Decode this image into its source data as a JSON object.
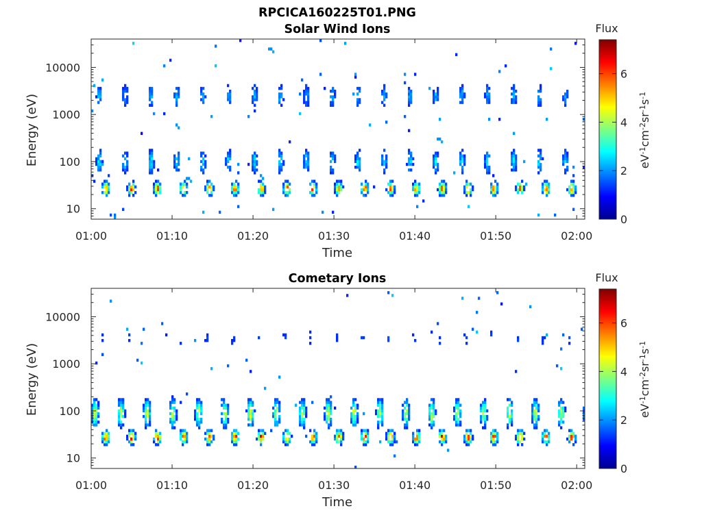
{
  "figure_title": "RPCICA160225T01.PNG",
  "colorbar": {
    "title": "Flux",
    "unit_base": [
      "eV",
      "cm",
      "sr",
      "s"
    ],
    "unit_exp": [
      "-1",
      "-2",
      "-1",
      "-1"
    ],
    "ticks": [
      "0",
      "2",
      "4",
      "6"
    ],
    "max": 7.4
  },
  "colors": {
    "colormap": [
      "#00008f",
      "#0000ff",
      "#0080ff",
      "#00ffff",
      "#80ff80",
      "#ffff00",
      "#ff8000",
      "#ff0000",
      "#800000"
    ]
  },
  "chart_data": [
    {
      "type": "heatmap",
      "title": "Solar Wind Ions",
      "xlabel": "Time",
      "ylabel": "Energy (eV)",
      "x_ticks": [
        "01:00",
        "01:10",
        "01:20",
        "01:30",
        "01:40",
        "01:50",
        "02:00"
      ],
      "xlim_minutes": [
        0,
        61
      ],
      "y_ticks": [
        "10",
        "100",
        "1000",
        "10000"
      ],
      "y_scale": "log",
      "ylim": [
        6,
        40000
      ],
      "colorbar_label": "Flux",
      "features": [
        {
          "energy": 27,
          "flux": 6.3,
          "period_min": 3.2,
          "start_min": 1.8
        },
        {
          "energy": 2500,
          "flux": 2.4,
          "period_min": 3.2,
          "start_min": 1.0
        },
        {
          "energy": 100,
          "flux": 2.8,
          "period_min": 3.2,
          "start_min": 1.0
        }
      ]
    },
    {
      "type": "heatmap",
      "title": "Cometary Ions",
      "xlabel": "Time",
      "ylabel": "Energy (eV)",
      "x_ticks": [
        "01:00",
        "01:10",
        "01:20",
        "01:30",
        "01:40",
        "01:50",
        "02:00"
      ],
      "xlim_minutes": [
        0,
        61
      ],
      "y_ticks": [
        "10",
        "100",
        "1000",
        "10000"
      ],
      "y_scale": "log",
      "ylim": [
        6,
        40000
      ],
      "colorbar_label": "Flux",
      "features": [
        {
          "energy": 28,
          "flux": 6.8,
          "period_min": 3.2,
          "start_min": 1.8
        },
        {
          "energy": 90,
          "flux": 4.6,
          "period_min": 3.2,
          "start_min": 0.5
        },
        {
          "energy": 3500,
          "flux": 1.5,
          "period_min": 3.2,
          "start_min": 1.5
        }
      ]
    }
  ]
}
